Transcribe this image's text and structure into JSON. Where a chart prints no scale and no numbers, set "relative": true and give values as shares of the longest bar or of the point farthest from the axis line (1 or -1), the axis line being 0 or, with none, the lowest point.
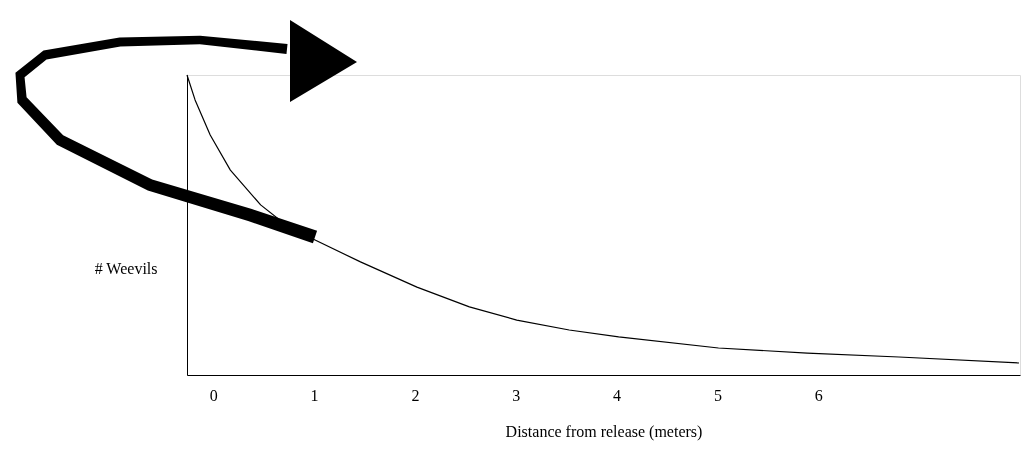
{
  "chart_data": {
    "type": "line",
    "relative": true,
    "xlabel": "Distance from release (meters)",
    "ylabel": "# Weevils",
    "x": [
      -0.26,
      -0.18,
      -0.03,
      0.17,
      0.47,
      0.76,
      1.01,
      1.46,
      2.02,
      2.54,
      3.01,
      3.53,
      4.02,
      5.01,
      5.89,
      6.8,
      7.99
    ],
    "series": [
      {
        "color": "#000000",
        "values": [
          1.0,
          0.917,
          0.8,
          0.683,
          0.567,
          0.49,
          0.45,
          0.377,
          0.293,
          0.227,
          0.183,
          0.15,
          0.127,
          0.09,
          0.073,
          0.06,
          0.04
        ]
      }
    ],
    "xlim": [
      -0.26,
      8
    ],
    "xticks": [
      0,
      1,
      2,
      3,
      4,
      5,
      6
    ],
    "grid": false,
    "legend": false,
    "tick_labels": "x",
    "marker": "none",
    "line_style": "solid"
  }
}
